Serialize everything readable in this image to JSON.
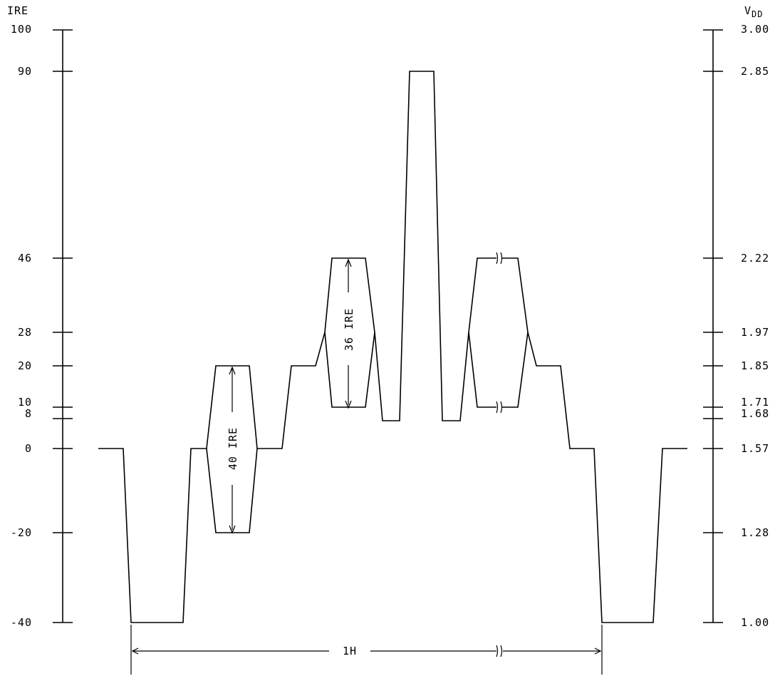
{
  "left_axis": {
    "title": "IRE",
    "ticks": [
      {
        "value": 100,
        "label": "100"
      },
      {
        "value": 90,
        "label": "90"
      },
      {
        "value": 46,
        "label": "46"
      },
      {
        "value": 28,
        "label": "28"
      },
      {
        "value": 20,
        "label": "20"
      },
      {
        "value": 10,
        "label": "10"
      },
      {
        "value": 8,
        "label": "8"
      },
      {
        "value": 0,
        "label": "0"
      },
      {
        "value": -20,
        "label": "-20"
      },
      {
        "value": -40,
        "label": "-40"
      }
    ]
  },
  "right_axis": {
    "title_main": "V",
    "title_sub": "DD",
    "ticks": [
      {
        "value": 100,
        "label": "3.00"
      },
      {
        "value": 90,
        "label": "2.85"
      },
      {
        "value": 46,
        "label": "2.22"
      },
      {
        "value": 28,
        "label": "1.97"
      },
      {
        "value": 20,
        "label": "1.85"
      },
      {
        "value": 10,
        "label": "1.71"
      },
      {
        "value": 8,
        "label": "1.68"
      },
      {
        "value": 0,
        "label": "1.57"
      },
      {
        "value": -20,
        "label": "1.28"
      },
      {
        "value": -40,
        "label": "1.00"
      }
    ]
  },
  "annotations": {
    "burst_label": "40 IRE",
    "chroma_label": "36 IRE",
    "period_label": "1H",
    "break_symbol": "≀≀"
  }
}
